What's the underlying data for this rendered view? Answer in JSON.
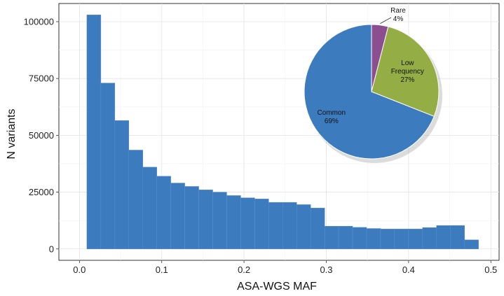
{
  "chart_data": [
    {
      "type": "bar",
      "title": "",
      "xlabel": "ASA-WGS MAF",
      "ylabel": "N variants",
      "xlim": [
        -0.025,
        0.51
      ],
      "ylim": [
        -5000,
        108000
      ],
      "x_ticks": [
        "0.0",
        "0.1",
        "0.2",
        "0.3",
        "0.4",
        "0.5"
      ],
      "y_ticks": [
        "0",
        "25000",
        "50000",
        "75000",
        "100000"
      ],
      "x_tick_values": [
        0.0,
        0.1,
        0.2,
        0.3,
        0.4,
        0.5
      ],
      "y_tick_values": [
        0,
        25000,
        50000,
        75000,
        100000
      ],
      "grid": true,
      "bar_color": "#3d7bbf",
      "bin_width": 0.017,
      "bin_starts": [
        0.009,
        0.026,
        0.043,
        0.06,
        0.077,
        0.094,
        0.111,
        0.128,
        0.145,
        0.162,
        0.179,
        0.196,
        0.213,
        0.23,
        0.247,
        0.264,
        0.281,
        0.298,
        0.315,
        0.332,
        0.349,
        0.366,
        0.383,
        0.4,
        0.417,
        0.434,
        0.451,
        0.468
      ],
      "values": [
        103000,
        73000,
        56500,
        43500,
        36000,
        32000,
        29000,
        27500,
        26000,
        25000,
        23500,
        22500,
        22000,
        20500,
        20500,
        19500,
        18000,
        10000,
        10000,
        9500,
        9000,
        8800,
        8800,
        8800,
        9400,
        10300,
        10300,
        4000
      ]
    },
    {
      "type": "pie",
      "slices": [
        {
          "name_lines": [
            "Rare"
          ],
          "value": 4,
          "label": "4%",
          "color": "#8b4f8f"
        },
        {
          "name_lines": [
            "Low",
            "Frequency"
          ],
          "value": 27,
          "label": "27%",
          "color": "#95ad45"
        },
        {
          "name_lines": [
            "Common"
          ],
          "value": 69,
          "label": "69%",
          "color": "#3d7bbf"
        }
      ]
    }
  ]
}
